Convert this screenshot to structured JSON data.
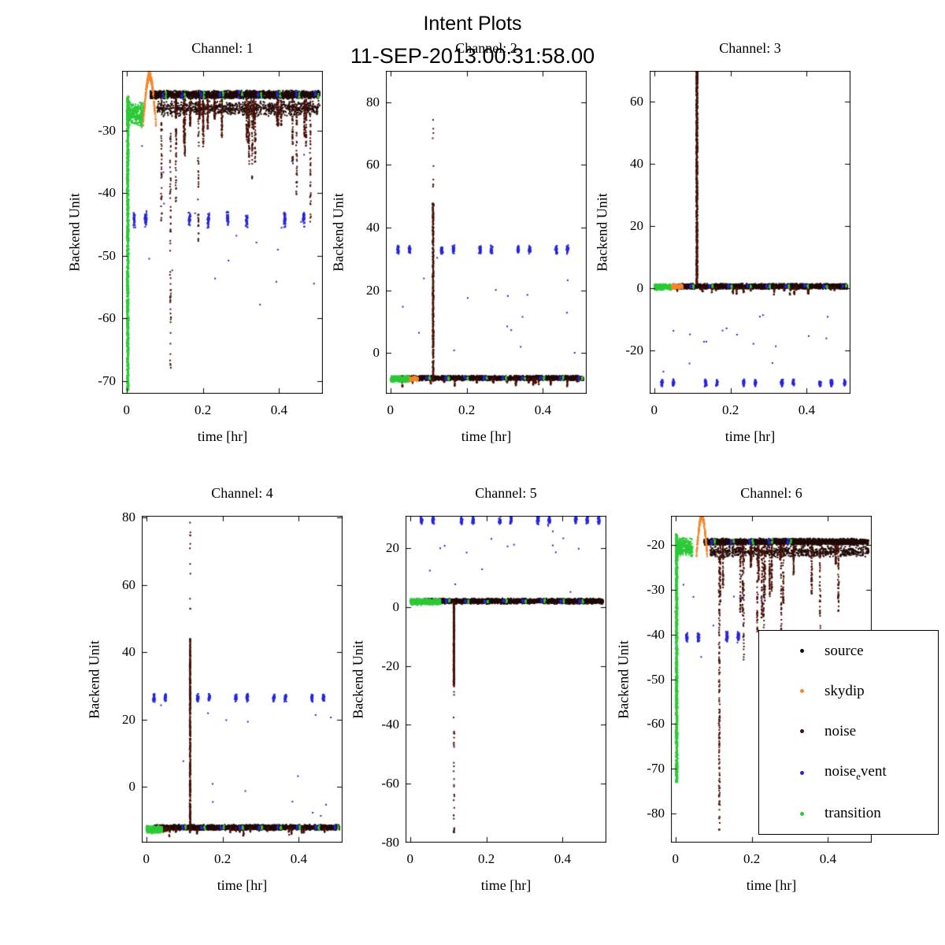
{
  "title": "Intent Plots",
  "subtitle": "11-SEP-2013.00:31:58.00",
  "colors": {
    "source": "#200a07",
    "skydip": "#f5862c",
    "noise": "#471008",
    "noise_event": "#2525dd",
    "transition": "#2cc937",
    "axis": "#000000",
    "background": "#ffffff"
  },
  "legend": {
    "entries": [
      {
        "series": "source",
        "label": "source"
      },
      {
        "series": "skydip",
        "label": "skydip"
      },
      {
        "series": "noise",
        "label": "noise"
      },
      {
        "series": "noise_event",
        "label": "noise_event",
        "label_parts": {
          "pre": "noise",
          "sub": "e",
          "post": "vent"
        }
      },
      {
        "series": "transition",
        "label": "transition"
      }
    ]
  },
  "chart_data": [
    {
      "type": "scatter",
      "title": "Channel: 1",
      "xlabel": "time [hr]",
      "ylabel": "Backend Unit",
      "xlim": [
        -0.012,
        0.515
      ],
      "ylim": [
        -72,
        -20.5
      ],
      "xticks": [
        0,
        0.2,
        0.4
      ],
      "yticks": [
        -70,
        -60,
        -50,
        -40,
        -30
      ],
      "features": [
        {
          "series": "source",
          "type": "hband",
          "x0": 0.062,
          "x1": 0.507,
          "y": -24.3,
          "sd": 0.7,
          "n": 2600
        },
        {
          "series": "source",
          "type": "hband",
          "x0": 0.08,
          "x1": 0.507,
          "y": -26.5,
          "sd": 1.3,
          "n": 900
        },
        {
          "series": "noise",
          "type": "dips",
          "x0": 0.08,
          "x1": 0.505,
          "y": -25,
          "dmin": 3,
          "dmax": 23,
          "count": 27,
          "n_per": 46
        },
        {
          "series": "noise",
          "type": "vband",
          "x": 0.115,
          "y0": -68,
          "y1": -27,
          "n": 64,
          "xj": 0.0018
        },
        {
          "series": "noise_event",
          "type": "clusters",
          "xs": [
            0.02,
            0.05,
            0.165,
            0.215,
            0.265,
            0.315,
            0.415,
            0.465
          ],
          "y": -44.2,
          "h": 2.8,
          "w": 0.007,
          "n_per": 42
        },
        {
          "series": "noise_event",
          "type": "clusters",
          "xs": [
            0.095,
            0.145,
            0.195,
            0.245,
            0.295,
            0.345,
            0.395,
            0.445,
            0.495
          ],
          "y": -24.3,
          "h": 1.5,
          "w": 0.004,
          "n_per": 11
        },
        {
          "series": "noise_event",
          "type": "scatter",
          "x0": 0.02,
          "x1": 0.5,
          "y0": -60,
          "y1": -30,
          "n": 18
        },
        {
          "series": "transition",
          "type": "clusters",
          "xs": [
            0.103,
            0.153,
            0.203,
            0.253,
            0.303,
            0.353,
            0.403,
            0.453,
            0.503
          ],
          "y": -24.3,
          "h": 1.4,
          "w": 0.004,
          "n_per": 9
        },
        {
          "series": "transition",
          "type": "vband",
          "x": 0.003,
          "y0": -71.5,
          "y1": -24.5,
          "n": 1300,
          "xj": 0.0034
        },
        {
          "series": "transition",
          "type": "hband",
          "x0": 0.0,
          "x1": 0.044,
          "y": -27.5,
          "sd": 2.1,
          "n": 330
        },
        {
          "series": "skydip",
          "type": "arc",
          "x0": 0.043,
          "x1": 0.077,
          "ybase": -29,
          "ypeak": -21.2,
          "sd": 0.8,
          "n": 300
        }
      ]
    },
    {
      "type": "scatter",
      "title": "Channel: 2",
      "xlabel": "time [hr]",
      "ylabel": "Backend Unit",
      "xlim": [
        -0.012,
        0.515
      ],
      "ylim": [
        -13,
        90
      ],
      "xticks": [
        0,
        0.2,
        0.4
      ],
      "yticks": [
        0,
        20,
        40,
        60,
        80
      ],
      "features": [
        {
          "series": "source",
          "type": "hband",
          "x0": 0.018,
          "x1": 0.507,
          "y": -8,
          "sd": 0.85,
          "n": 2700
        },
        {
          "series": "noise",
          "type": "dips",
          "x0": 0.03,
          "x1": 0.505,
          "y": -8,
          "dmin": 1,
          "dmax": 3,
          "count": 20,
          "n_per": 14
        },
        {
          "series": "noise",
          "type": "vband",
          "x": 0.112,
          "y0": -9,
          "y1": 48,
          "n": 520,
          "xj": 0.0016
        },
        {
          "series": "noise",
          "type": "vband",
          "x": 0.112,
          "y0": 48,
          "y1": 76,
          "n": 9,
          "xj": 0.0012
        },
        {
          "series": "noise_event",
          "type": "clusters",
          "xs": [
            0.02,
            0.05,
            0.135,
            0.165,
            0.235,
            0.265,
            0.335,
            0.365,
            0.435,
            0.465
          ],
          "y": 33,
          "h": 3,
          "w": 0.007,
          "n_per": 40
        },
        {
          "series": "noise_event",
          "type": "scatter",
          "x0": 0.02,
          "x1": 0.5,
          "y0": -4,
          "y1": 31,
          "n": 16
        },
        {
          "series": "noise_event",
          "type": "clusters",
          "xs": [
            0.095,
            0.145,
            0.195,
            0.245,
            0.295,
            0.345,
            0.395,
            0.445,
            0.495
          ],
          "y": -8,
          "h": 1.5,
          "w": 0.004,
          "n_per": 11
        },
        {
          "series": "transition",
          "type": "clusters",
          "xs": [
            0.103,
            0.153,
            0.203,
            0.253,
            0.303,
            0.353,
            0.403,
            0.453,
            0.503
          ],
          "y": -8,
          "h": 1.4,
          "w": 0.004,
          "n_per": 9
        },
        {
          "series": "transition",
          "type": "hband",
          "x0": 0.0,
          "x1": 0.05,
          "y": -8.3,
          "sd": 1.1,
          "n": 380
        },
        {
          "series": "skydip",
          "type": "hband",
          "x0": 0.05,
          "x1": 0.072,
          "y": -8.2,
          "sd": 0.9,
          "n": 130
        }
      ]
    },
    {
      "type": "scatter",
      "title": "Channel: 3",
      "xlabel": "time [hr]",
      "ylabel": "Backend Unit",
      "xlim": [
        -0.012,
        0.515
      ],
      "ylim": [
        -34,
        70
      ],
      "xticks": [
        0,
        0.2,
        0.4
      ],
      "yticks": [
        -20,
        0,
        20,
        40,
        60
      ],
      "features": [
        {
          "series": "source",
          "type": "hband",
          "x0": 0.05,
          "x1": 0.507,
          "y": 0.6,
          "sd": 0.95,
          "n": 2700
        },
        {
          "series": "noise",
          "type": "dips",
          "x0": 0.06,
          "x1": 0.505,
          "y": 0.5,
          "dmin": 1,
          "dmax": 3,
          "count": 18,
          "n_per": 12
        },
        {
          "series": "noise",
          "type": "vband",
          "x": 0.112,
          "y0": 1,
          "y1": 70,
          "n": 800,
          "xj": 0.0022
        },
        {
          "series": "noise",
          "type": "clusters",
          "xs": [
            0.112
          ],
          "y": 68,
          "h": 5,
          "w": 0.004,
          "n_per": 40
        },
        {
          "series": "noise_event",
          "type": "clusters",
          "xs": [
            0.02,
            0.05,
            0.135,
            0.165,
            0.235,
            0.265,
            0.335,
            0.365,
            0.435,
            0.465,
            0.5
          ],
          "y": -30.5,
          "h": 2.6,
          "w": 0.007,
          "n_per": 38
        },
        {
          "series": "noise_event",
          "type": "scatter",
          "x0": 0.02,
          "x1": 0.5,
          "y0": -28,
          "y1": -8,
          "n": 17
        },
        {
          "series": "noise_event",
          "type": "clusters",
          "xs": [
            0.095,
            0.145,
            0.195,
            0.245,
            0.295,
            0.345,
            0.395,
            0.445,
            0.495
          ],
          "y": 0.6,
          "h": 1.5,
          "w": 0.004,
          "n_per": 11
        },
        {
          "series": "transition",
          "type": "clusters",
          "xs": [
            0.103,
            0.153,
            0.203,
            0.253,
            0.303,
            0.353,
            0.403,
            0.453,
            0.503
          ],
          "y": 0.6,
          "h": 1.4,
          "w": 0.004,
          "n_per": 9
        },
        {
          "series": "transition",
          "type": "hband",
          "x0": 0.0,
          "x1": 0.045,
          "y": 0.4,
          "sd": 1.1,
          "n": 330
        },
        {
          "series": "skydip",
          "type": "hband",
          "x0": 0.046,
          "x1": 0.075,
          "y": 0.5,
          "sd": 0.9,
          "n": 150
        }
      ]
    },
    {
      "type": "scatter",
      "title": "Channel: 4",
      "xlabel": "time [hr]",
      "ylabel": "Backend Unit",
      "xlim": [
        -0.012,
        0.515
      ],
      "ylim": [
        -16.5,
        80.5
      ],
      "xticks": [
        0,
        0.2,
        0.4
      ],
      "yticks": [
        0,
        20,
        40,
        60,
        80
      ],
      "features": [
        {
          "series": "source",
          "type": "hband",
          "x0": 0.018,
          "x1": 0.507,
          "y": -12,
          "sd": 0.9,
          "n": 2700
        },
        {
          "series": "noise",
          "type": "dips",
          "x0": 0.03,
          "x1": 0.505,
          "y": -12,
          "dmin": 1,
          "dmax": 3,
          "count": 18,
          "n_per": 12
        },
        {
          "series": "noise",
          "type": "vband",
          "x": 0.115,
          "y0": -13.5,
          "y1": 44,
          "n": 520,
          "xj": 0.0016
        },
        {
          "series": "noise",
          "type": "vband",
          "x": 0.115,
          "y0": 44,
          "y1": 80,
          "n": 11,
          "xj": 0.0012
        },
        {
          "series": "noise_event",
          "type": "clusters",
          "xs": [
            0.02,
            0.05,
            0.135,
            0.165,
            0.235,
            0.265,
            0.335,
            0.365,
            0.435,
            0.465
          ],
          "y": 26.5,
          "h": 2.6,
          "w": 0.007,
          "n_per": 38
        },
        {
          "series": "noise_event",
          "type": "scatter",
          "x0": 0.015,
          "x1": 0.5,
          "y0": -10,
          "y1": 25,
          "n": 15
        },
        {
          "series": "noise_event",
          "type": "clusters",
          "xs": [
            0.095,
            0.145,
            0.195,
            0.245,
            0.295,
            0.345,
            0.395,
            0.445,
            0.495
          ],
          "y": -12,
          "h": 1.5,
          "w": 0.004,
          "n_per": 11
        },
        {
          "series": "transition",
          "type": "clusters",
          "xs": [
            0.103,
            0.153,
            0.203,
            0.253,
            0.303,
            0.353,
            0.403,
            0.453,
            0.503
          ],
          "y": -12,
          "h": 1.4,
          "w": 0.004,
          "n_per": 9
        },
        {
          "series": "transition",
          "type": "hband",
          "x0": 0.0,
          "x1": 0.042,
          "y": -12.6,
          "sd": 1.2,
          "n": 360
        }
      ]
    },
    {
      "type": "scatter",
      "title": "Channel: 5",
      "xlabel": "time [hr]",
      "ylabel": "Backend Unit",
      "xlim": [
        -0.012,
        0.515
      ],
      "ylim": [
        -80,
        31
      ],
      "xticks": [
        0,
        0.2,
        0.4
      ],
      "yticks": [
        -80,
        -60,
        -40,
        -20,
        0,
        20
      ],
      "features": [
        {
          "series": "source",
          "type": "hband",
          "x0": 0.035,
          "x1": 0.507,
          "y": 2,
          "sd": 1.0,
          "n": 2700
        },
        {
          "series": "noise",
          "type": "vband",
          "x": 0.115,
          "y0": -27,
          "y1": 2,
          "n": 420,
          "xj": 0.0016
        },
        {
          "series": "noise",
          "type": "vband",
          "x": 0.115,
          "y0": -77,
          "y1": -27,
          "n": 26,
          "xj": 0.0013
        },
        {
          "series": "noise",
          "type": "clusters",
          "xs": [
            0.115
          ],
          "y": -76,
          "h": 2,
          "w": 0.003,
          "n_per": 8
        },
        {
          "series": "noise_event",
          "type": "clusters",
          "xs": [
            0.03,
            0.06,
            0.135,
            0.165,
            0.235,
            0.265,
            0.335,
            0.365,
            0.435,
            0.465,
            0.495
          ],
          "y": 29.5,
          "h": 3,
          "w": 0.007,
          "n_per": 40
        },
        {
          "series": "noise_event",
          "type": "scatter",
          "x0": 0.02,
          "x1": 0.5,
          "y0": 18,
          "y1": 28,
          "n": 12
        },
        {
          "series": "noise_event",
          "type": "scatter",
          "x0": 0.05,
          "x1": 0.45,
          "y0": 5,
          "y1": 15,
          "n": 4
        },
        {
          "series": "noise_event",
          "type": "clusters",
          "xs": [
            0.095,
            0.145,
            0.195,
            0.245,
            0.295,
            0.345,
            0.395,
            0.445
          ],
          "y": 2,
          "h": 1.5,
          "w": 0.004,
          "n_per": 11
        },
        {
          "series": "transition",
          "type": "clusters",
          "xs": [
            0.103,
            0.153,
            0.203,
            0.253,
            0.303,
            0.353,
            0.403,
            0.453
          ],
          "y": 2,
          "h": 1.4,
          "w": 0.004,
          "n_per": 9
        },
        {
          "series": "transition",
          "type": "hband",
          "x0": 0.0,
          "x1": 0.08,
          "y": 1.8,
          "sd": 1.2,
          "n": 480
        }
      ]
    },
    {
      "type": "scatter",
      "title": "Channel: 6",
      "xlabel": "time [hr]",
      "ylabel": "Backend Unit",
      "xlim": [
        -0.012,
        0.515
      ],
      "ylim": [
        -86.5,
        -13.5
      ],
      "xticks": [
        0,
        0.2,
        0.4
      ],
      "yticks": [
        -80,
        -70,
        -60,
        -50,
        -40,
        -30,
        -20
      ],
      "features": [
        {
          "series": "source",
          "type": "hband",
          "x0": 0.075,
          "x1": 0.507,
          "y": -19.3,
          "sd": 0.8,
          "n": 2400
        },
        {
          "series": "source",
          "type": "hband",
          "x0": 0.09,
          "x1": 0.507,
          "y": -21.5,
          "sd": 1.4,
          "n": 800
        },
        {
          "series": "noise",
          "type": "dips",
          "x0": 0.085,
          "x1": 0.505,
          "y": -20,
          "dmin": 3,
          "dmax": 26,
          "count": 22,
          "n_per": 46
        },
        {
          "series": "noise",
          "type": "vband",
          "x": 0.115,
          "y0": -85,
          "y1": -22,
          "n": 170,
          "xj": 0.0018
        },
        {
          "series": "noise_event",
          "type": "clusters",
          "xs": [
            0.03,
            0.06,
            0.135,
            0.165,
            0.225
          ],
          "y": -40.5,
          "h": 2.6,
          "w": 0.007,
          "n_per": 40
        },
        {
          "series": "noise_event",
          "type": "scatter",
          "x0": 0.02,
          "x1": 0.3,
          "y0": -46,
          "y1": -26,
          "n": 10
        },
        {
          "series": "noise_event",
          "type": "clusters",
          "xs": [
            0.095,
            0.145,
            0.195,
            0.245,
            0.295
          ],
          "y": -19.3,
          "h": 1.5,
          "w": 0.004,
          "n_per": 11
        },
        {
          "series": "transition",
          "type": "clusters",
          "xs": [
            0.103,
            0.153,
            0.203,
            0.253,
            0.303
          ],
          "y": -19.3,
          "h": 1.4,
          "w": 0.004,
          "n_per": 9
        },
        {
          "series": "transition",
          "type": "vband",
          "x": 0.003,
          "y0": -73,
          "y1": -17.5,
          "n": 1300,
          "xj": 0.0034
        },
        {
          "series": "transition",
          "type": "hband",
          "x0": 0.0,
          "x1": 0.045,
          "y": -20.5,
          "sd": 2.2,
          "n": 330
        },
        {
          "series": "skydip",
          "type": "arc",
          "x0": 0.055,
          "x1": 0.083,
          "ybase": -22,
          "ypeak": -13.6,
          "sd": 0.9,
          "n": 280
        }
      ]
    }
  ]
}
